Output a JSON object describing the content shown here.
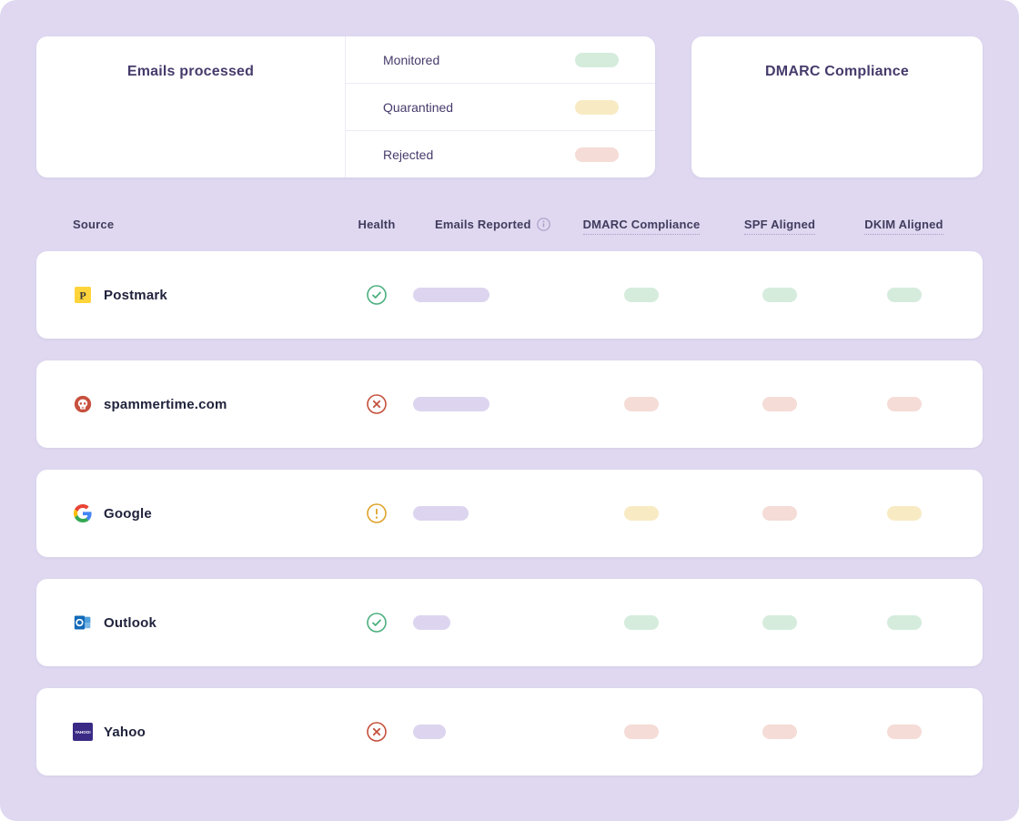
{
  "colors": {
    "green": "#d5ecdd",
    "yellow": "#f8ebc4",
    "red": "#f5dcd6",
    "purple": "#ddd5ef"
  },
  "summary": {
    "emails_processed_title": "Emails processed",
    "dmarc_compliance_title": "DMARC Compliance",
    "stats": [
      {
        "label": "Monitored",
        "color": "green"
      },
      {
        "label": "Quarantined",
        "color": "yellow"
      },
      {
        "label": "Rejected",
        "color": "red"
      }
    ]
  },
  "table": {
    "header": {
      "source": "Source",
      "health": "Health",
      "emails_reported": "Emails Reported",
      "dmarc_compliance": "DMARC Compliance",
      "spf_aligned": "SPF Aligned",
      "dkim_aligned": "DKIM Aligned"
    },
    "rows": [
      {
        "source": "Postmark",
        "icon": "postmark-logo",
        "health": "healthy",
        "emails_reported_width": 84,
        "dmarc_compliance": "green",
        "spf_aligned": "green",
        "dkim_aligned": "green"
      },
      {
        "source": "spammertime.com",
        "icon": "skull",
        "health": "failing",
        "emails_reported_width": 84,
        "dmarc_compliance": "red",
        "spf_aligned": "red",
        "dkim_aligned": "red"
      },
      {
        "source": "Google",
        "icon": "google-logo",
        "health": "warning",
        "emails_reported_width": 61,
        "dmarc_compliance": "yellow",
        "spf_aligned": "red",
        "dkim_aligned": "yellow"
      },
      {
        "source": "Outlook",
        "icon": "outlook-logo",
        "health": "healthy",
        "emails_reported_width": 41,
        "dmarc_compliance": "green",
        "spf_aligned": "green",
        "dkim_aligned": "green"
      },
      {
        "source": "Yahoo",
        "icon": "yahoo-logo",
        "health": "failing",
        "emails_reported_width": 36,
        "dmarc_compliance": "red",
        "spf_aligned": "red",
        "dkim_aligned": "red"
      }
    ]
  }
}
